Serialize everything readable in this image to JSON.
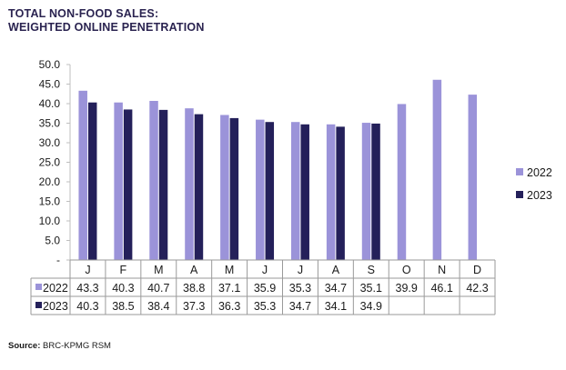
{
  "title_line1": "TOTAL NON-FOOD SALES:",
  "title_line2": "WEIGHTED ONLINE PENETRATION",
  "source_label": "Source:",
  "source_text": "BRC-KPMG RSM",
  "chart_data": {
    "type": "bar",
    "categories": [
      "J",
      "F",
      "M",
      "A",
      "M",
      "J",
      "J",
      "A",
      "S",
      "O",
      "N",
      "D"
    ],
    "series": [
      {
        "name": "2022",
        "color": "#9b93d9",
        "values": [
          43.3,
          40.3,
          40.7,
          38.8,
          37.1,
          35.9,
          35.3,
          34.7,
          35.1,
          39.9,
          46.1,
          42.3
        ]
      },
      {
        "name": "2023",
        "color": "#24205a",
        "values": [
          40.3,
          38.5,
          38.4,
          37.3,
          36.3,
          35.3,
          34.7,
          34.1,
          34.9,
          null,
          null,
          null
        ]
      }
    ],
    "ylim": [
      0,
      50
    ],
    "yticks": [
      "-",
      "5.0",
      "10.0",
      "15.0",
      "20.0",
      "25.0",
      "30.0",
      "35.0",
      "40.0",
      "45.0",
      "50.0"
    ],
    "legend_position": "right",
    "data_table": true,
    "grid": false
  }
}
